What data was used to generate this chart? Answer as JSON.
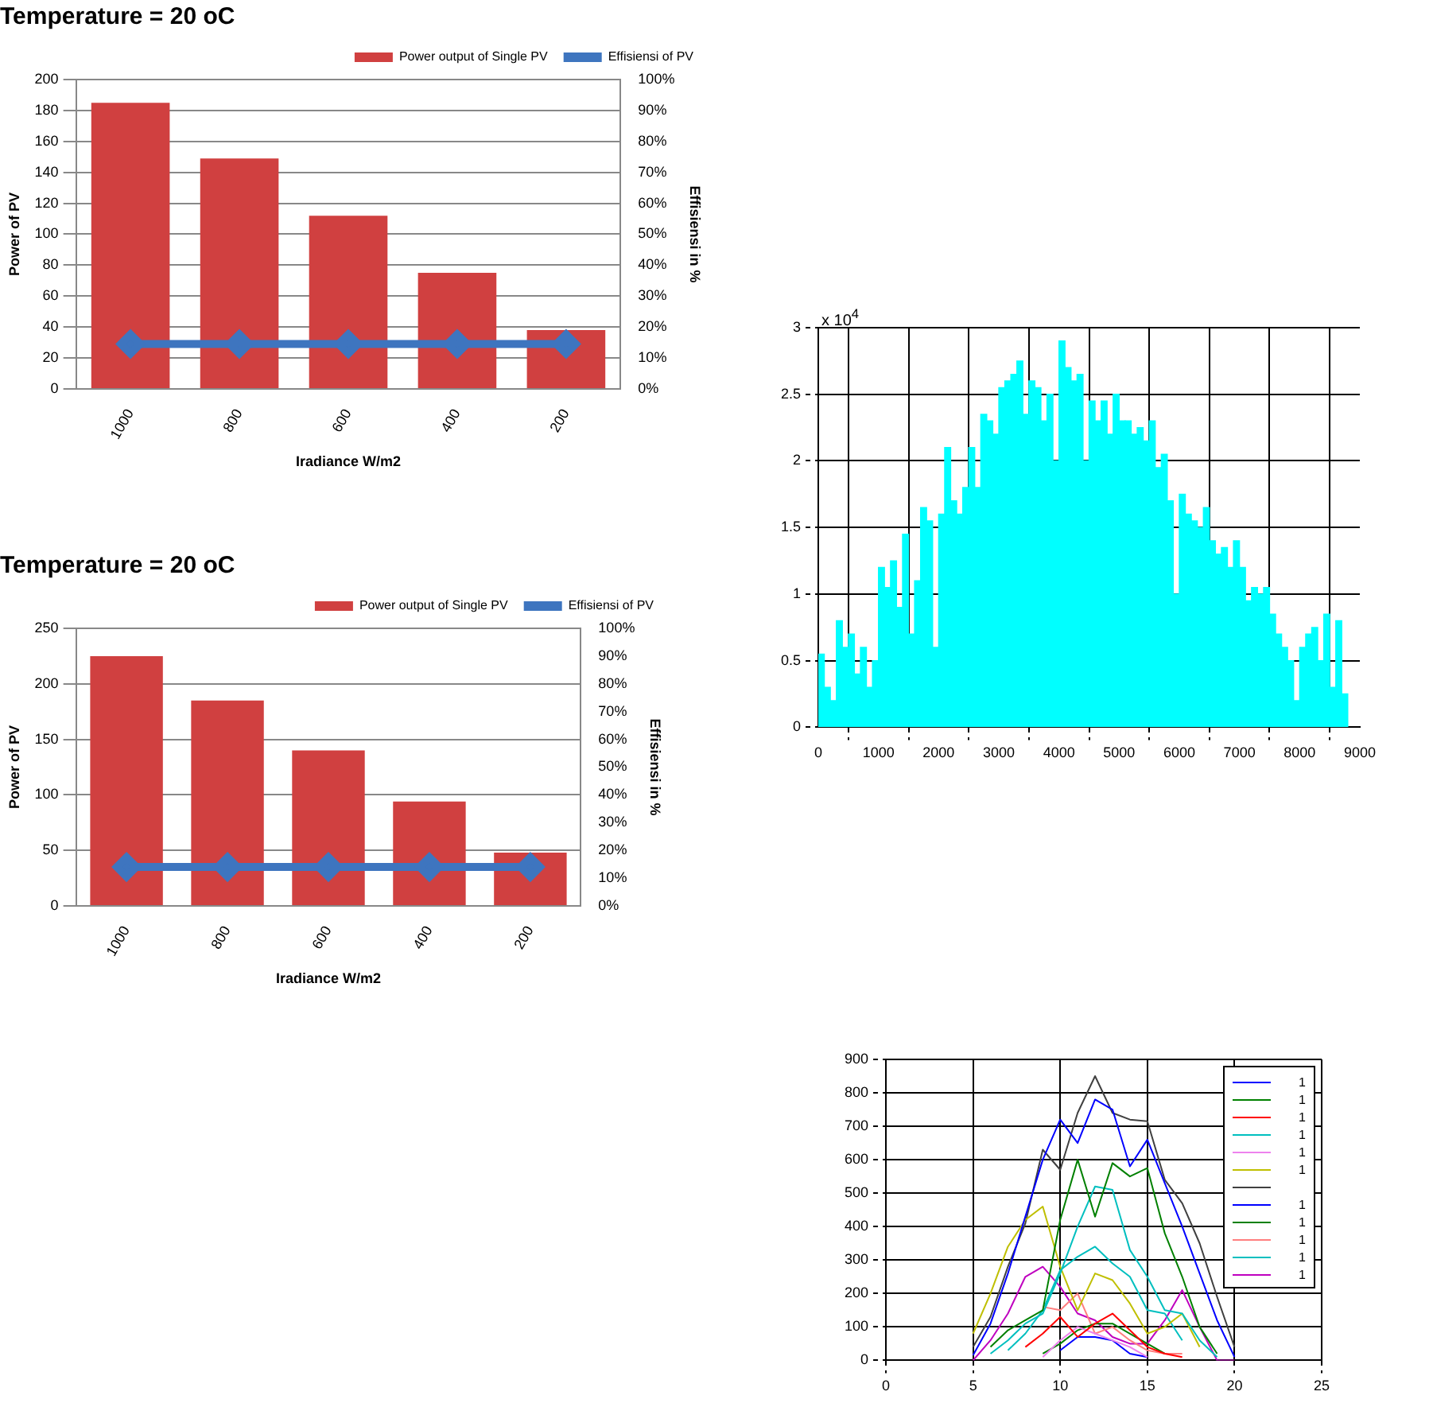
{
  "chart_data": [
    {
      "type": "bar",
      "title": "Temperature = 20 oC",
      "xlabel": "Iradiance W/m2",
      "ylabel": "Power of PV",
      "y2label": "Effisiensi in %",
      "categories": [
        "1000",
        "800",
        "600",
        "400",
        "200"
      ],
      "series": [
        {
          "name": "Power output of Single PV",
          "color": "#d04040",
          "values": [
            185,
            149,
            112,
            75,
            38
          ]
        },
        {
          "name": "Effisiensi of PV",
          "type": "line",
          "axis": "y2",
          "color": "#3e75bf",
          "values": [
            14.5,
            14.5,
            14.5,
            14.5,
            14.5
          ]
        }
      ],
      "ylim": [
        0,
        200
      ],
      "yticks": [
        0,
        20,
        40,
        60,
        80,
        100,
        120,
        140,
        160,
        180,
        200
      ],
      "y2lim": [
        0,
        100
      ],
      "y2ticks": [
        {
          "value": 0,
          "label": "0%"
        },
        {
          "value": 10,
          "label": "10%"
        },
        {
          "value": 20,
          "label": "20%"
        },
        {
          "value": 30,
          "label": "30%"
        },
        {
          "value": 40,
          "label": "40%"
        },
        {
          "value": 50,
          "label": "50%"
        },
        {
          "value": 60,
          "label": "60%"
        },
        {
          "value": 70,
          "label": "70%"
        },
        {
          "value": 80,
          "label": "80%"
        },
        {
          "value": 90,
          "label": "90%"
        },
        {
          "value": 100,
          "label": "100%"
        }
      ],
      "grid": "y",
      "legend": "top",
      "marker": "diamond"
    },
    {
      "type": "bar",
      "title": "Temperature = 20 oC",
      "xlabel": "Iradiance W/m2",
      "ylabel": "Power of PV",
      "y2label": "Effisiensi in %",
      "categories": [
        "1000",
        "800",
        "600",
        "400",
        "200"
      ],
      "series": [
        {
          "name": "Power output of Single PV",
          "color": "#d04040",
          "values": [
            225,
            185,
            140,
            94,
            48
          ]
        },
        {
          "name": "Effisiensi of PV",
          "type": "line",
          "axis": "y2",
          "color": "#3e75bf",
          "values": [
            14,
            14,
            14,
            14,
            14
          ]
        }
      ],
      "ylim": [
        0,
        250
      ],
      "yticks": [
        0,
        50,
        100,
        150,
        200,
        250
      ],
      "y2lim": [
        0,
        100
      ],
      "y2ticks": [
        {
          "value": 0,
          "label": "0%"
        },
        {
          "value": 10,
          "label": "10%"
        },
        {
          "value": 20,
          "label": "20%"
        },
        {
          "value": 30,
          "label": "30%"
        },
        {
          "value": 40,
          "label": "40%"
        },
        {
          "value": 50,
          "label": "50%"
        },
        {
          "value": 60,
          "label": "60%"
        },
        {
          "value": 70,
          "label": "70%"
        },
        {
          "value": 80,
          "label": "80%"
        },
        {
          "value": 90,
          "label": "90%"
        },
        {
          "value": 100,
          "label": "100%"
        }
      ],
      "grid": "y",
      "legend": "top",
      "marker": "diamond"
    },
    {
      "type": "bar",
      "annotations": [
        "x 10$^{4}$"
      ],
      "x": [
        50,
        150,
        250,
        350,
        450,
        550,
        650,
        750,
        850,
        950,
        1050,
        1150,
        1250,
        1350,
        1450,
        1550,
        1650,
        1750,
        1850,
        1950,
        2050,
        2150,
        2250,
        2350,
        2450,
        2550,
        2650,
        2750,
        2850,
        2950,
        3050,
        3150,
        3250,
        3350,
        3450,
        3550,
        3650,
        3750,
        3850,
        3950,
        4050,
        4150,
        4250,
        4350,
        4450,
        4550,
        4650,
        4750,
        4850,
        4950,
        5050,
        5150,
        5250,
        5350,
        5450,
        5550,
        5650,
        5750,
        5850,
        5950,
        6050,
        6150,
        6250,
        6350,
        6450,
        6550,
        6650,
        6750,
        6850,
        6950,
        7050,
        7150,
        7250,
        7350,
        7450,
        7550,
        7650,
        7750,
        7850,
        7950,
        8050,
        8150,
        8250,
        8350,
        8450,
        8550,
        8650,
        8750
      ],
      "series": [
        {
          "color": "#00ffff",
          "values": [
            0.55,
            0.3,
            0.2,
            0.8,
            0.6,
            0.7,
            0.4,
            0.6,
            0.3,
            0.5,
            1.2,
            1.05,
            1.25,
            0.9,
            1.45,
            0.7,
            1.1,
            1.65,
            1.55,
            0.6,
            1.6,
            2.1,
            1.7,
            1.6,
            1.8,
            2.1,
            1.8,
            2.35,
            2.3,
            2.2,
            2.55,
            2.6,
            2.65,
            2.75,
            2.35,
            2.6,
            2.55,
            2.3,
            2.5,
            2.0,
            2.9,
            2.7,
            2.6,
            2.65,
            2.0,
            2.45,
            2.3,
            2.45,
            2.2,
            2.5,
            2.3,
            2.3,
            2.2,
            2.25,
            2.15,
            2.3,
            1.95,
            2.05,
            1.7,
            1.0,
            1.75,
            1.6,
            1.55,
            1.5,
            1.65,
            1.4,
            1.3,
            1.35,
            1.2,
            1.4,
            1.2,
            0.95,
            1.05,
            1.0,
            1.05,
            0.85,
            0.7,
            0.6,
            0.5,
            0.2,
            0.6,
            0.7,
            0.75,
            0.5,
            0.85,
            0.3,
            0.8,
            0.25
          ]
        }
      ],
      "xlim": [
        0,
        9000
      ],
      "xticks": [
        0,
        1000,
        2000,
        3000,
        4000,
        5000,
        6000,
        7000,
        8000,
        9000
      ],
      "ylim": [
        0,
        3
      ],
      "yticks": [
        0,
        0.5,
        1,
        1.5,
        2,
        2.5,
        3
      ],
      "grid": true
    },
    {
      "type": "line",
      "x": [
        5,
        6,
        7,
        8,
        9,
        10,
        11,
        12,
        13,
        14,
        15,
        16,
        17,
        18,
        19,
        20
      ],
      "series": [
        {
          "name": "1",
          "color": "#0000ff",
          "values": [
            15,
            110,
            260,
            430,
            600,
            720,
            650,
            780,
            750,
            580,
            660,
            530,
            400,
            260,
            120,
            10
          ]
        },
        {
          "name": "1",
          "color": "#008000",
          "values": [
            null,
            40,
            90,
            120,
            150,
            420,
            600,
            430,
            590,
            550,
            575,
            380,
            250,
            100,
            20,
            null
          ]
        },
        {
          "name": "1",
          "color": "#ff0000",
          "values": [
            null,
            null,
            null,
            40,
            80,
            130,
            70,
            110,
            140,
            90,
            40,
            20,
            10,
            null,
            null,
            null
          ]
        },
        {
          "name": "1",
          "color": "#00bfbf",
          "values": [
            null,
            20,
            60,
            110,
            140,
            260,
            400,
            520,
            510,
            330,
            250,
            150,
            140,
            60,
            10,
            null
          ]
        },
        {
          "name": "1",
          "color": "#ee82ee",
          "values": [
            null,
            null,
            null,
            null,
            10,
            60,
            100,
            80,
            60,
            40,
            10,
            null,
            null,
            null,
            null,
            null
          ]
        },
        {
          "name": "1",
          "color": "#bfbf00",
          "values": [
            80,
            200,
            340,
            420,
            460,
            280,
            150,
            260,
            240,
            170,
            80,
            100,
            140,
            40,
            null,
            null
          ]
        },
        {
          "color": "#404040",
          "values": [
            40,
            130,
            280,
            410,
            630,
            570,
            740,
            850,
            740,
            720,
            715,
            540,
            470,
            350,
            190,
            40
          ]
        },
        {
          "name": "1",
          "color": "#0000ff",
          "values": [
            null,
            null,
            null,
            null,
            null,
            30,
            70,
            70,
            60,
            20,
            10,
            null,
            null,
            null,
            null,
            null
          ]
        },
        {
          "name": "1",
          "color": "#008000",
          "values": [
            null,
            null,
            null,
            null,
            20,
            50,
            90,
            110,
            110,
            80,
            50,
            20,
            null,
            null,
            null,
            null
          ]
        },
        {
          "name": "1",
          "color": "#ff7f7f",
          "values": [
            null,
            null,
            null,
            null,
            160,
            150,
            200,
            80,
            100,
            60,
            30,
            20,
            20,
            null,
            null,
            null
          ]
        },
        {
          "name": "1",
          "color": "#00bfbf",
          "values": [
            null,
            null,
            30,
            80,
            150,
            270,
            310,
            340,
            290,
            250,
            150,
            140,
            60,
            null,
            null,
            null
          ]
        },
        {
          "name": "1",
          "color": "#bf00bf",
          "values": [
            0,
            60,
            140,
            250,
            280,
            220,
            140,
            120,
            70,
            50,
            50,
            120,
            210,
            100,
            0,
            0
          ]
        }
      ],
      "xlim": [
        0,
        25
      ],
      "xticks": [
        0,
        5,
        10,
        15,
        20,
        25
      ],
      "ylim": [
        0,
        900
      ],
      "yticks": [
        0,
        100,
        200,
        300,
        400,
        500,
        600,
        700,
        800,
        900
      ],
      "grid": true,
      "legend": "top right"
    }
  ]
}
